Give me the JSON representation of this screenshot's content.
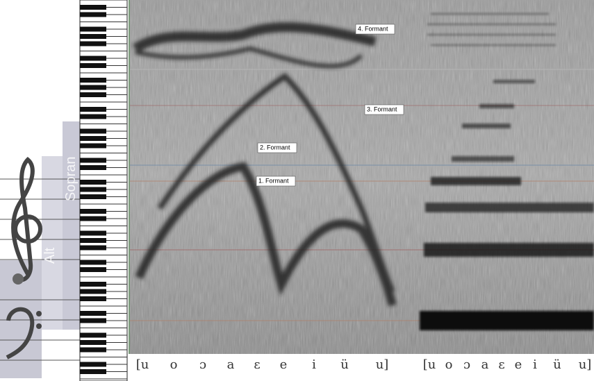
{
  "formant_labels": [
    "4. Formant",
    "3. Formant",
    "2. Formant",
    "1. Formant"
  ],
  "voice_labels": [
    "Sopran",
    "Alt"
  ],
  "vowels_left": [
    "[u",
    "o",
    "ɔ",
    "a",
    "ɛ",
    "e",
    "i",
    "ü",
    "u]"
  ],
  "vowels_right": [
    "[u",
    "o",
    "ɔ",
    "a",
    "ɛ",
    "e",
    "i",
    "ü",
    "u]"
  ]
}
